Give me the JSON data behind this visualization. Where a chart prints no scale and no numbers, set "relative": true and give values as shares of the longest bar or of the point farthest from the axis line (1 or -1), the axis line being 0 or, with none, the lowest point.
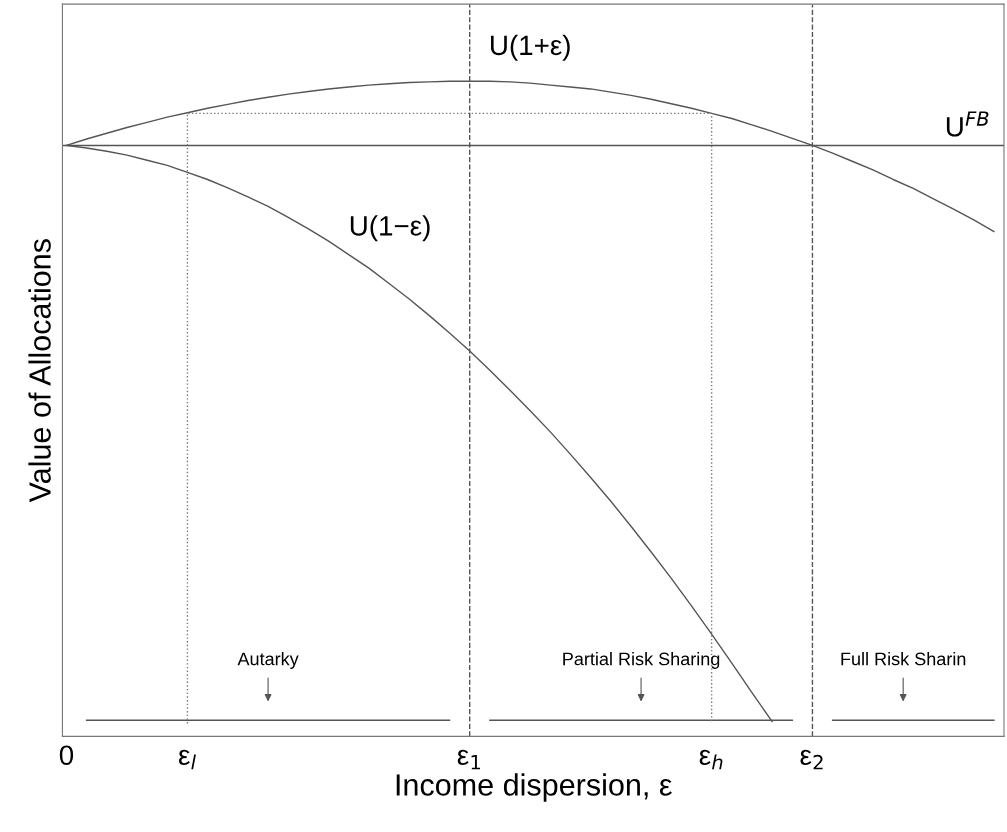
{
  "chart_data": {
    "type": "line",
    "relative": true,
    "xlabel": "Income dispersion, ε",
    "ylabel": "Value of Allocations",
    "categories": [
      "0",
      null,
      null,
      null,
      null,
      null,
      "ε$_{l}$",
      null,
      null,
      null,
      null,
      null,
      null,
      null,
      null,
      null,
      null,
      null,
      null,
      null,
      "ε$_{1}$",
      null,
      null,
      null,
      null,
      null,
      null,
      null,
      null,
      null,
      null,
      null,
      "ε$_{h}$",
      null,
      null,
      null,
      null,
      "ε$_{2}$",
      null,
      null,
      null,
      null,
      null,
      null,
      null,
      null,
      null
    ],
    "series": [
      {
        "name": "U(1+ε)",
        "color": "#555555",
        "values": [
          0.9,
          0.91,
          0.919,
          0.928,
          0.936,
          0.944,
          0.951,
          0.958,
          0.964,
          0.97,
          0.975,
          0.98,
          0.984,
          0.988,
          0.991,
          0.994,
          0.996,
          0.998,
          0.999,
          1.0,
          1.0,
          1.0,
          0.999,
          0.997,
          0.994,
          0.991,
          0.988,
          0.983,
          0.978,
          0.972,
          0.965,
          0.958,
          0.95,
          0.942,
          0.932,
          0.922,
          0.911,
          0.9,
          0.888,
          0.875,
          0.862,
          0.847,
          0.833,
          0.817,
          0.801,
          0.784,
          0.766
        ]
      },
      {
        "name": "U(1−ε)",
        "color": "#555555",
        "values": [
          0.9,
          0.896,
          0.891,
          0.885,
          0.877,
          0.869,
          0.858,
          0.847,
          0.834,
          0.82,
          0.805,
          0.788,
          0.77,
          0.751,
          0.73,
          0.709,
          0.685,
          0.661,
          0.635,
          0.608,
          0.58,
          0.55,
          0.519,
          0.487,
          0.454,
          0.419,
          0.383,
          0.346,
          0.307,
          0.267,
          0.226,
          0.183,
          0.139,
          0.094,
          0.048,
          0.003,
          null,
          null,
          null,
          null,
          null,
          null,
          null,
          null,
          null,
          null,
          null
        ]
      },
      {
        "color": "#555555",
        "values": [
          null,
          0.005,
          0.005,
          0.005,
          0.005,
          0.005,
          0.005,
          0.005,
          0.005,
          0.005,
          0.005,
          0.005,
          0.005,
          0.005,
          0.005,
          0.005,
          0.005,
          0.005,
          0.005,
          0.005,
          null,
          0.005,
          0.005,
          0.005,
          0.005,
          0.005,
          0.005,
          0.005,
          0.005,
          0.005,
          0.005,
          0.005,
          0.005,
          0.005,
          0.005,
          0.005,
          0.005,
          null,
          0.005,
          0.005,
          0.005,
          0.005,
          0.005,
          0.005,
          0.005,
          0.005,
          0.005
        ]
      },
      {
        "color": "#777777",
        "line_style": "dotted",
        "x": [
          "ε$_{l}$",
          "ε$_{l}$",
          "ε$_{h}$",
          "ε$_{h}$"
        ],
        "values": [
          0,
          0.95,
          0.95,
          0
        ]
      }
    ],
    "ref_lines": [
      {
        "axis": "x",
        "value": "ε$_{1}$",
        "line_style": "dashed",
        "color": "#555555"
      },
      {
        "axis": "x",
        "value": "ε$_{2}$",
        "line_style": "dashed",
        "color": "#555555"
      },
      {
        "axis": "y",
        "value": 0.9,
        "label": "U$^{FB}$",
        "color": "#555555"
      }
    ],
    "annotations": [
      "Autarky",
      "Partial Risk Sharing",
      "Full Risk Sharin"
    ],
    "tick_labels": "x",
    "grid": false,
    "legend": false
  }
}
